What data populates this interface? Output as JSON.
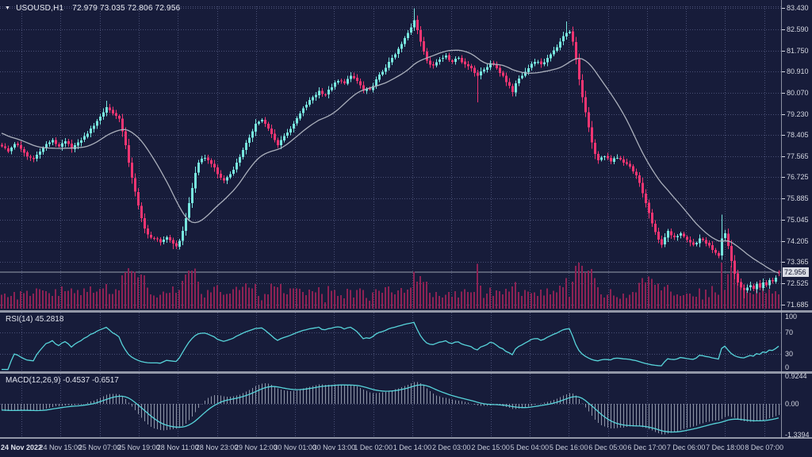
{
  "header": {
    "symbol": "USOUSD,H1",
    "quote_line": "72.979 73.035 72.806 72.956",
    "marker": "▼"
  },
  "rsi_panel": {
    "name": "RSI(14)",
    "value": "45.2818",
    "ticks": [
      {
        "label": "100",
        "value": 100
      },
      {
        "label": "70",
        "value": 70
      },
      {
        "label": "30",
        "value": 30
      },
      {
        "label": "0",
        "value": 0
      }
    ]
  },
  "macd_panel": {
    "name": "MACD(12,26,9)",
    "values": "-0.4537 -0.6517",
    "ticks": [
      {
        "label": "0.9244",
        "value": 0.9244
      },
      {
        "label": "0.00",
        "value": 0
      },
      {
        "label": "-1.3394",
        "value": -1.3394
      }
    ]
  },
  "price_axis": {
    "current": {
      "label": "72.956",
      "value": 72.956
    },
    "ticks": [
      {
        "label": "83.430",
        "value": 83.43
      },
      {
        "label": "82.590",
        "value": 82.59
      },
      {
        "label": "81.750",
        "value": 81.75
      },
      {
        "label": "80.910",
        "value": 80.91
      },
      {
        "label": "80.070",
        "value": 80.07
      },
      {
        "label": "79.230",
        "value": 79.23
      },
      {
        "label": "78.405",
        "value": 78.405
      },
      {
        "label": "77.565",
        "value": 77.565
      },
      {
        "label": "76.725",
        "value": 76.725
      },
      {
        "label": "75.885",
        "value": 75.885
      },
      {
        "label": "75.045",
        "value": 75.045
      },
      {
        "label": "74.205",
        "value": 74.205
      },
      {
        "label": "73.365",
        "value": 73.365
      },
      {
        "label": "72.525",
        "value": 72.525
      },
      {
        "label": "71.685",
        "value": 71.685
      }
    ]
  },
  "time_axis": {
    "labels": [
      "24 Nov 2022",
      "24 Nov 15:00",
      "25 Nov 07:00",
      "25 Nov 19:00",
      "28 Nov 11:00",
      "28 Nov 23:00",
      "29 Nov 12:00",
      "30 Nov 01:00",
      "30 Nov 13:00",
      "1 Dec 02:00",
      "1 Dec 14:00",
      "2 Dec 03:00",
      "2 Dec 15:00",
      "5 Dec 04:00",
      "5 Dec 16:00",
      "6 Dec 05:00",
      "6 Dec 17:00",
      "7 Dec 06:00",
      "7 Dec 18:00",
      "8 Dec 07:00"
    ]
  },
  "colors": {
    "bg": "#171c3a",
    "bull": "#77e6de",
    "bear": "#f23572",
    "ma": "#abb0bc",
    "grid": "#4a5076",
    "volume": "#8c2254",
    "indicator_line": "#57d4da",
    "macd_hist": "#b9c0cf",
    "separator": "#a9aebc",
    "axis_text": "#d5d8e2",
    "price_line": "#9aa0ae",
    "price_tag_bg": "#d9dce4",
    "price_tag_text": "#12162f"
  },
  "chart_data": {
    "type": "candlestick",
    "symbol": "USOUSD",
    "timeframe": "H1",
    "title": "USOUSD,H1 72.979 73.035 72.806 72.956",
    "bars": 246,
    "ylim": [
      71.45,
      83.6
    ],
    "last_ohlc": [
      72.979,
      73.035,
      72.806,
      72.956
    ],
    "rsi_last": 45.2818,
    "macd_last": -0.4537,
    "macd_signal_last": -0.6517,
    "macd_range": [
      -1.3394,
      0.9244
    ],
    "ma_period": 21,
    "noise": 0.12,
    "preroll_start": 79.5,
    "anchors": [
      [
        0,
        77.95
      ],
      [
        2,
        77.75
      ],
      [
        4,
        78.05
      ],
      [
        6,
        77.85
      ],
      [
        8,
        77.55
      ],
      [
        10,
        77.45
      ],
      [
        12,
        77.75
      ],
      [
        14,
        78.05
      ],
      [
        16,
        78.2
      ],
      [
        18,
        77.95
      ],
      [
        20,
        78.15
      ],
      [
        22,
        77.85
      ],
      [
        24,
        78.1
      ],
      [
        26,
        78.35
      ],
      [
        28,
        78.65
      ],
      [
        30,
        78.95
      ],
      [
        32,
        79.3
      ],
      [
        33,
        79.5
      ],
      [
        35,
        79.25
      ],
      [
        37,
        79.05
      ],
      [
        38,
        78.55
      ],
      [
        39,
        78.0
      ],
      [
        40,
        77.3
      ],
      [
        41,
        76.7
      ],
      [
        42,
        76.15
      ],
      [
        43,
        75.6
      ],
      [
        44,
        75.1
      ],
      [
        45,
        74.7
      ],
      [
        46,
        74.45
      ],
      [
        48,
        74.3
      ],
      [
        50,
        74.15
      ],
      [
        52,
        74.35
      ],
      [
        54,
        74.1
      ],
      [
        55,
        73.98
      ],
      [
        56,
        74.2
      ],
      [
        57,
        74.6
      ],
      [
        58,
        75.1
      ],
      [
        59,
        75.7
      ],
      [
        60,
        76.3
      ],
      [
        61,
        76.9
      ],
      [
        62,
        77.3
      ],
      [
        64,
        77.5
      ],
      [
        66,
        77.25
      ],
      [
        68,
        76.85
      ],
      [
        70,
        76.6
      ],
      [
        72,
        76.85
      ],
      [
        74,
        77.3
      ],
      [
        76,
        77.8
      ],
      [
        78,
        78.3
      ],
      [
        80,
        78.85
      ],
      [
        82,
        79.0
      ],
      [
        84,
        78.65
      ],
      [
        86,
        78.2
      ],
      [
        87,
        78.0
      ],
      [
        88,
        78.2
      ],
      [
        90,
        78.5
      ],
      [
        92,
        78.85
      ],
      [
        94,
        79.25
      ],
      [
        96,
        79.6
      ],
      [
        98,
        79.9
      ],
      [
        100,
        80.15
      ],
      [
        102,
        80.0
      ],
      [
        104,
        80.3
      ],
      [
        106,
        80.55
      ],
      [
        108,
        80.45
      ],
      [
        110,
        80.75
      ],
      [
        112,
        80.55
      ],
      [
        114,
        80.15
      ],
      [
        116,
        80.2
      ],
      [
        118,
        80.6
      ],
      [
        120,
        80.9
      ],
      [
        122,
        81.3
      ],
      [
        124,
        81.6
      ],
      [
        126,
        82.0
      ],
      [
        128,
        82.45
      ],
      [
        130,
        82.95
      ],
      [
        131,
        82.55
      ],
      [
        132,
        82.1
      ],
      [
        133,
        81.7
      ],
      [
        134,
        81.35
      ],
      [
        136,
        81.15
      ],
      [
        138,
        81.4
      ],
      [
        140,
        81.55
      ],
      [
        142,
        81.3
      ],
      [
        144,
        81.45
      ],
      [
        146,
        81.2
      ],
      [
        148,
        81.05
      ],
      [
        150,
        80.75
      ],
      [
        152,
        81.0
      ],
      [
        154,
        81.25
      ],
      [
        156,
        81.05
      ],
      [
        158,
        80.75
      ],
      [
        160,
        80.35
      ],
      [
        161,
        80.1
      ],
      [
        162,
        80.45
      ],
      [
        164,
        80.75
      ],
      [
        166,
        81.05
      ],
      [
        168,
        81.3
      ],
      [
        170,
        81.2
      ],
      [
        172,
        81.45
      ],
      [
        174,
        81.75
      ],
      [
        176,
        82.1
      ],
      [
        178,
        82.45
      ],
      [
        179,
        82.5
      ],
      [
        180,
        82.1
      ],
      [
        181,
        81.4
      ],
      [
        182,
        80.6
      ],
      [
        183,
        79.9
      ],
      [
        184,
        79.3
      ],
      [
        185,
        78.7
      ],
      [
        186,
        78.1
      ],
      [
        187,
        77.65
      ],
      [
        188,
        77.4
      ],
      [
        190,
        77.55
      ],
      [
        192,
        77.35
      ],
      [
        194,
        77.5
      ],
      [
        196,
        77.3
      ],
      [
        198,
        77.15
      ],
      [
        200,
        76.8
      ],
      [
        201,
        76.5
      ],
      [
        202,
        76.1
      ],
      [
        203,
        75.7
      ],
      [
        204,
        75.3
      ],
      [
        205,
        74.9
      ],
      [
        206,
        74.55
      ],
      [
        207,
        74.25
      ],
      [
        208,
        74.05
      ],
      [
        209,
        74.35
      ],
      [
        210,
        74.6
      ],
      [
        212,
        74.35
      ],
      [
        214,
        74.5
      ],
      [
        216,
        74.25
      ],
      [
        218,
        74.05
      ],
      [
        220,
        74.3
      ],
      [
        222,
        74.1
      ],
      [
        224,
        73.85
      ],
      [
        226,
        73.6
      ],
      [
        227,
        74.3
      ],
      [
        228,
        74.5
      ],
      [
        229,
        74.0
      ],
      [
        230,
        73.4
      ],
      [
        231,
        72.9
      ],
      [
        232,
        72.55
      ],
      [
        233,
        72.35
      ],
      [
        234,
        72.25
      ],
      [
        236,
        72.45
      ],
      [
        237,
        72.3
      ],
      [
        238,
        72.5
      ],
      [
        239,
        72.35
      ],
      [
        240,
        72.55
      ],
      [
        241,
        72.45
      ],
      [
        242,
        72.65
      ],
      [
        243,
        72.6
      ],
      [
        244,
        72.75
      ],
      [
        245,
        72.956
      ]
    ],
    "wick_events": [
      [
        33,
        "high",
        79.75
      ],
      [
        54,
        "low",
        73.88
      ],
      [
        130,
        "high",
        83.43
      ],
      [
        150,
        "low",
        79.7
      ],
      [
        178,
        "high",
        82.9
      ],
      [
        227,
        "high",
        75.25
      ],
      [
        234,
        "low",
        71.93
      ]
    ]
  }
}
